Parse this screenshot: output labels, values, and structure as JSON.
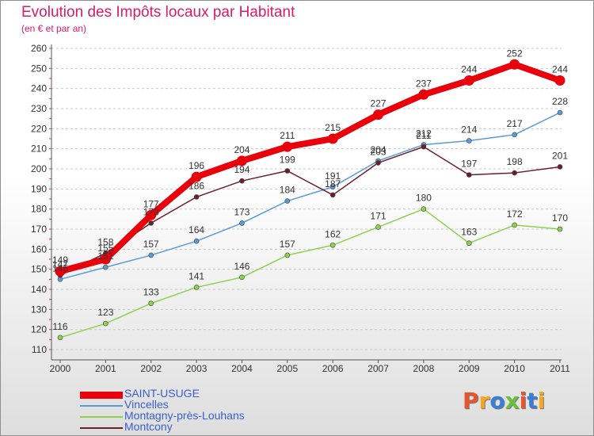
{
  "header": {
    "title": "Evolution des Impôts locaux par Habitant",
    "subtitle": "(en € et par an)"
  },
  "chart_data": {
    "type": "line",
    "title": "Evolution des Impôts locaux par Habitant",
    "subtitle": "(en € et par an)",
    "xlabel": "",
    "ylabel": "",
    "x": [
      "2000",
      "2001",
      "2002",
      "2003",
      "2004",
      "2005",
      "2006",
      "2007",
      "2008",
      "2009",
      "2010",
      "2011"
    ],
    "ylim": [
      110,
      260
    ],
    "yticks": [
      110,
      120,
      130,
      140,
      150,
      160,
      170,
      180,
      190,
      200,
      210,
      220,
      230,
      240,
      250,
      260
    ],
    "grid": "horizontal dashed",
    "legend_position": "bottom-left",
    "series": [
      {
        "name": "SAINT-USUGE",
        "color": "#e8000b",
        "values": [
          149,
          155,
          177,
          196,
          204,
          211,
          215,
          227,
          237,
          244,
          252,
          244
        ]
      },
      {
        "name": "Vincelles",
        "color": "#5b9bd5",
        "values": [
          145,
          151,
          157,
          164,
          173,
          184,
          191,
          204,
          212,
          214,
          217,
          228
        ]
      },
      {
        "name": "Montagny-près-Louhans",
        "color": "#8ed14f",
        "values": [
          116,
          123,
          133,
          141,
          146,
          157,
          162,
          171,
          180,
          163,
          172,
          170
        ]
      },
      {
        "name": "Montcony",
        "color": "#6b1f2a",
        "values": [
          147,
          158,
          173,
          186,
          194,
          199,
          187,
          203,
          211,
          197,
          198,
          201
        ]
      }
    ]
  },
  "logo": {
    "text": "Proxiti",
    "colors": [
      "#e8542c",
      "#f5a623",
      "#3a7fd5",
      "#6cbf3c",
      "#e8542c",
      "#3a7fd5",
      "#f5a623"
    ]
  }
}
